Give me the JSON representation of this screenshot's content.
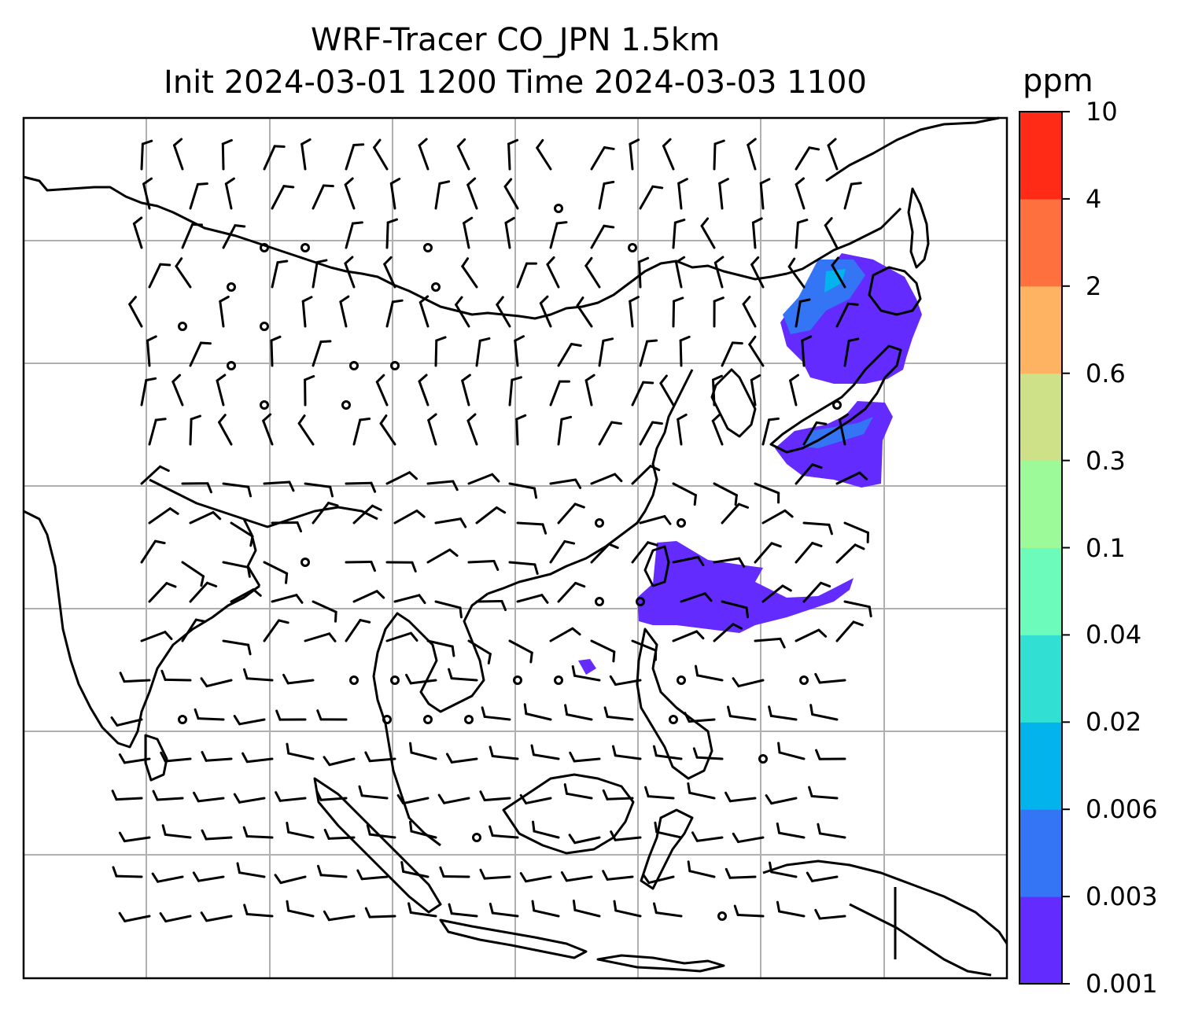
{
  "title": {
    "line1": "WRF-Tracer CO_JPN 1.5km",
    "line2": "Init 2024-03-01 1200 Time 2024-03-03 1100"
  },
  "colorbar": {
    "unit": "ppm",
    "levels": [
      "0.001",
      "0.003",
      "0.006",
      "0.02",
      "0.04",
      "0.1",
      "0.3",
      "0.6",
      "2",
      "4",
      "10"
    ],
    "colors": [
      "#642bff",
      "#3475f5",
      "#02b3ec",
      "#31e0d3",
      "#6cfbbb",
      "#9dfa98",
      "#cee088",
      "#fdb362",
      "#fe703d",
      "#ff2b16"
    ]
  },
  "map": {
    "gridlines": true,
    "coastline_color": "#000000",
    "grid_color": "#b0b0b0",
    "plume_color": "#642bff",
    "plume_secondary_color": "#3475f5",
    "plume_tertiary_color": "#02b3ec"
  }
}
